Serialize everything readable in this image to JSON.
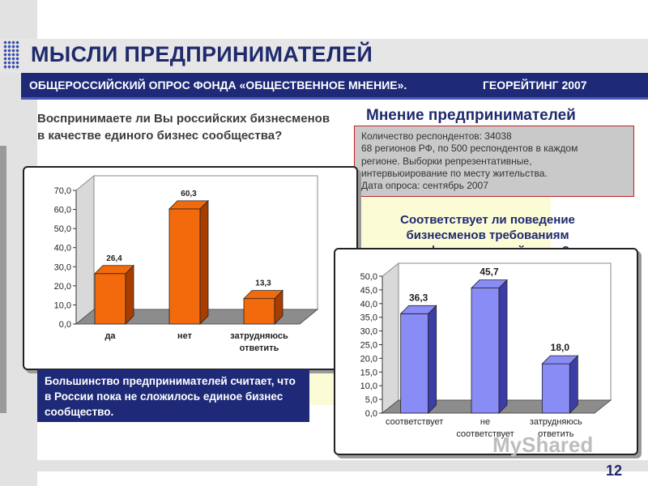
{
  "title": "МЫСЛИ ПРЕДПРИНИМАТЕЛЕЙ",
  "subtitle": {
    "left": "ОБЩЕРОССИЙСКИЙ ОПРОС ФОНДА «ОБЩЕСТВЕННОЕ МНЕНИЕ».",
    "right": "ГЕОРЕЙТИНГ 2007"
  },
  "question1": "Воспринимаете ли Вы российских бизнесменов в качестве единого бизнес сообщества?",
  "opinion_title": "Мнение предпринимателей",
  "info": {
    "lines": [
      "Количество респондентов: 34038",
      "68 регионов РФ, по 500 респондентов в каждом",
      "регионе. Выборки репрезентативные,",
      "интервьюирование по месту жительства.",
      "Дата опроса: сентябрь 2007"
    ]
  },
  "question2": "Соответствует ли поведение бизнесменов требованиям профессиональной этики?",
  "conclusion": "Большинство предпринимателей считает, что в России пока не сложилось единое бизнес сообщество.",
  "page_number": "12",
  "watermark": "MyShared",
  "chart_data": [
    {
      "type": "bar",
      "categories": [
        "да",
        "нет",
        "затрудняюсь ответить"
      ],
      "values": [
        26.4,
        60.3,
        13.3
      ],
      "value_labels": [
        "26,4",
        "60,3",
        "13,3"
      ],
      "y_ticks": [
        "0,0",
        "10,0",
        "20,0",
        "30,0",
        "40,0",
        "50,0",
        "60,0",
        "70,0"
      ],
      "ylim": [
        0,
        70
      ],
      "bar_color": "#f36a0c",
      "bar_dark": "#a83d00",
      "grid": false
    },
    {
      "type": "bar",
      "categories": [
        "соответствует",
        "не соответствует",
        "затрудняюсь ответить"
      ],
      "values": [
        36.3,
        45.7,
        18.0
      ],
      "value_labels": [
        "36,3",
        "45,7",
        "18,0"
      ],
      "y_ticks": [
        "0,0",
        "5,0",
        "10,0",
        "15,0",
        "20,0",
        "25,0",
        "30,0",
        "35,0",
        "40,0",
        "45,0",
        "50,0"
      ],
      "ylim": [
        0,
        50
      ],
      "bar_color": "#8a8cf5",
      "bar_dark": "#3c3ea8",
      "grid": false
    }
  ]
}
